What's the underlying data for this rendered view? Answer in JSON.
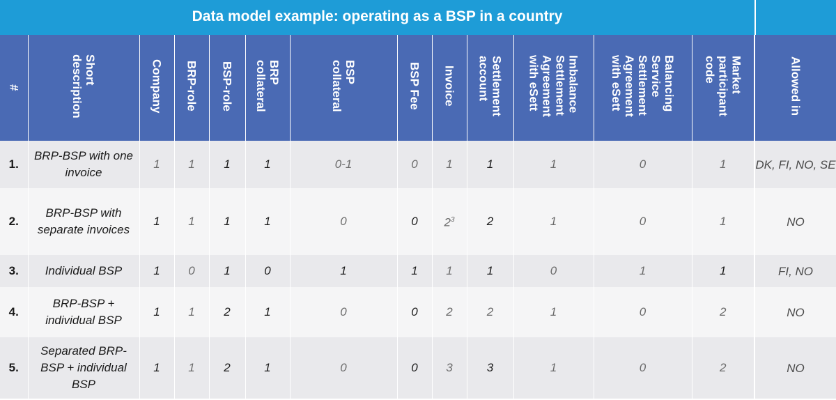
{
  "title": "Data model example: operating as a BSP in a country",
  "columns": [
    {
      "key": "num",
      "label": "#"
    },
    {
      "key": "desc",
      "label": "Short\ndescription"
    },
    {
      "key": "company",
      "label": "Company"
    },
    {
      "key": "brp_role",
      "label": "BRP-role"
    },
    {
      "key": "bsp_role",
      "label": "BSP-role"
    },
    {
      "key": "brp_collateral",
      "label": "BRP\ncollateral"
    },
    {
      "key": "bsp_collateral",
      "label": "BSP\ncollateral"
    },
    {
      "key": "bsp_fee",
      "label": "BSP Fee"
    },
    {
      "key": "invoice",
      "label": "Invoice"
    },
    {
      "key": "settlement_account",
      "label": "Settlement\naccount"
    },
    {
      "key": "imbalance",
      "label": "Imbalance\nSettlement\nAgreement\nwith eSett"
    },
    {
      "key": "balancing",
      "label": "Balancing\nService\nSettlement\nAgreement\nwith eSett"
    },
    {
      "key": "mpc",
      "label": "Market\nparticipant\ncode"
    },
    {
      "key": "allowed",
      "label": "Allowed in"
    }
  ],
  "rows": [
    {
      "num": "1.",
      "desc": "BRP-BSP with one invoice",
      "company": "1",
      "brp_role": "1",
      "bsp_role": "1",
      "brp_collateral": "1",
      "bsp_collateral": "0-1",
      "bsp_fee": "0",
      "invoice": "1",
      "invoice_sup": "",
      "settlement_account": "1",
      "imbalance": "1",
      "balancing": "0",
      "mpc": "1",
      "allowed": "DK, FI, NO, SE"
    },
    {
      "num": "2.",
      "desc": "BRP-BSP with separate invoices",
      "company": "1",
      "brp_role": "1",
      "bsp_role": "1",
      "brp_collateral": "1",
      "bsp_collateral": "0",
      "bsp_fee": "0",
      "invoice": "2",
      "invoice_sup": "3",
      "settlement_account": "2",
      "imbalance": "1",
      "balancing": "0",
      "mpc": "1",
      "allowed": "NO"
    },
    {
      "num": "3.",
      "desc": "Individual BSP",
      "company": "1",
      "brp_role": "0",
      "bsp_role": "1",
      "brp_collateral": "0",
      "bsp_collateral": "1",
      "bsp_fee": "1",
      "invoice": "1",
      "invoice_sup": "",
      "settlement_account": "1",
      "imbalance": "0",
      "balancing": "1",
      "mpc": "1",
      "allowed": "FI, NO"
    },
    {
      "num": "4.",
      "desc": "BRP-BSP + individual BSP",
      "company": "1",
      "brp_role": "1",
      "bsp_role": "2",
      "brp_collateral": "1",
      "bsp_collateral": "0",
      "bsp_fee": "0",
      "invoice": "2",
      "invoice_sup": "",
      "settlement_account": "2",
      "imbalance": "1",
      "balancing": "0",
      "mpc": "2",
      "allowed": "NO"
    },
    {
      "num": "5.",
      "desc": "Separated BRP-BSP + individual BSP",
      "company": "1",
      "brp_role": "1",
      "bsp_role": "2",
      "brp_collateral": "1",
      "bsp_collateral": "0",
      "bsp_fee": "0",
      "invoice": "3",
      "invoice_sup": "",
      "settlement_account": "3",
      "imbalance": "1",
      "balancing": "0",
      "mpc": "2",
      "allowed": "NO"
    }
  ],
  "colors": {
    "title_bar": "#1e9cd7",
    "header": "#4a6ab4",
    "row_odd": "#e9e9ec",
    "row_even": "#f5f5f6"
  }
}
